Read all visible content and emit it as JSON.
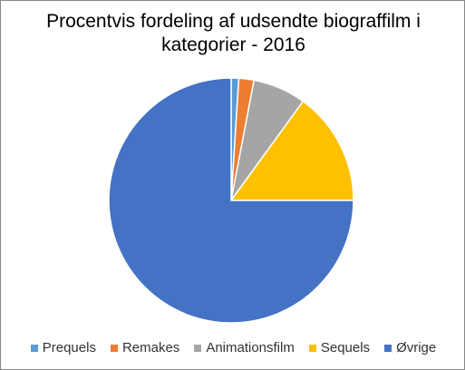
{
  "chart_data": {
    "type": "pie",
    "title": "Procentvis fordeling af udsendte biograffilm i kategorier - 2016",
    "categories": [
      "Prequels",
      "Remakes",
      "Animationsfilm",
      "Sequels",
      "Øvrige"
    ],
    "values": [
      1,
      2,
      7,
      15,
      75
    ],
    "colors": [
      "#5b9bd5",
      "#ed7d31",
      "#a5a5a5",
      "#ffc000",
      "#4472c4"
    ],
    "legend": "bottom"
  }
}
